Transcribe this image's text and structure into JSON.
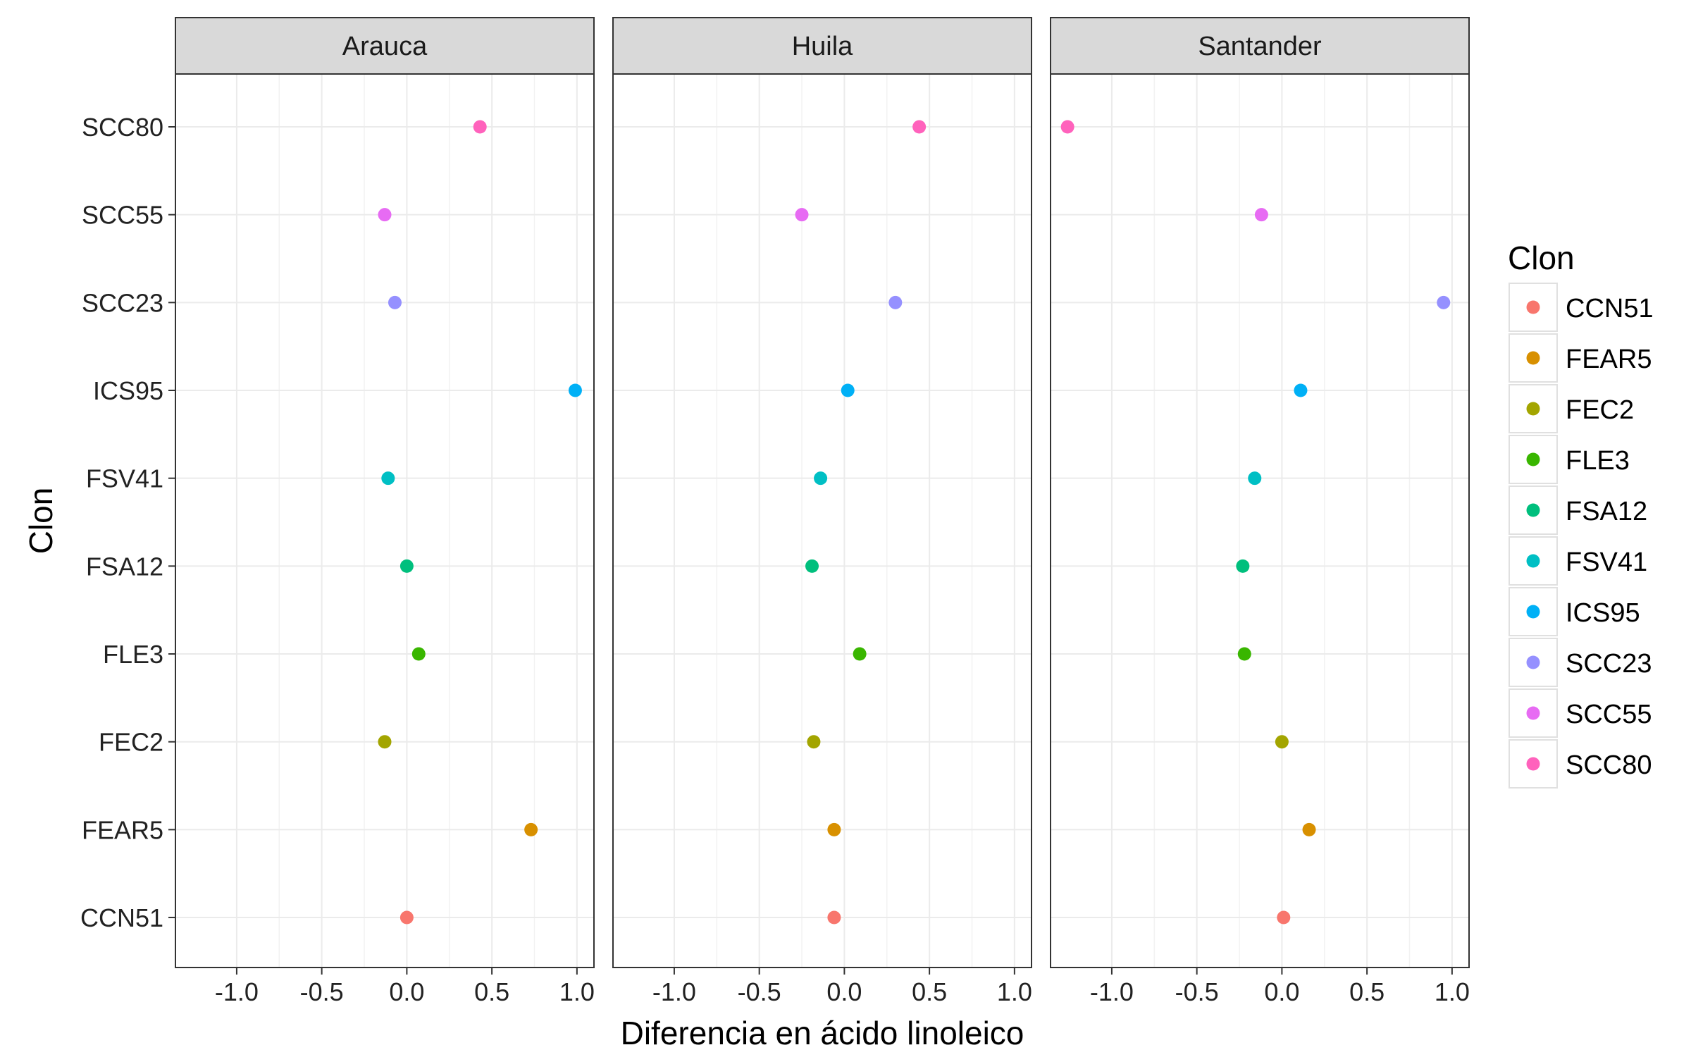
{
  "chart_data": {
    "type": "scatter",
    "facet_by": "Región",
    "panels": [
      {
        "name": "Arauca",
        "points": [
          {
            "clon": "CCN51",
            "x": 0.0
          },
          {
            "clon": "FEAR5",
            "x": 0.73
          },
          {
            "clon": "FEC2",
            "x": -0.13
          },
          {
            "clon": "FLE3",
            "x": 0.07
          },
          {
            "clon": "FSA12",
            "x": 0.0
          },
          {
            "clon": "FSV41",
            "x": -0.11
          },
          {
            "clon": "ICS95",
            "x": 0.99
          },
          {
            "clon": "SCC23",
            "x": -0.07
          },
          {
            "clon": "SCC55",
            "x": -0.13
          },
          {
            "clon": "SCC80",
            "x": 0.43
          }
        ]
      },
      {
        "name": "Huila",
        "points": [
          {
            "clon": "CCN51",
            "x": -0.06
          },
          {
            "clon": "FEAR5",
            "x": -0.06
          },
          {
            "clon": "FEC2",
            "x": -0.18
          },
          {
            "clon": "FLE3",
            "x": 0.09
          },
          {
            "clon": "FSA12",
            "x": -0.19
          },
          {
            "clon": "FSV41",
            "x": -0.14
          },
          {
            "clon": "ICS95",
            "x": 0.02
          },
          {
            "clon": "SCC23",
            "x": 0.3
          },
          {
            "clon": "SCC55",
            "x": -0.25
          },
          {
            "clon": "SCC80",
            "x": 0.44
          }
        ]
      },
      {
        "name": "Santander",
        "points": [
          {
            "clon": "CCN51",
            "x": 0.01
          },
          {
            "clon": "FEAR5",
            "x": 0.16
          },
          {
            "clon": "FEC2",
            "x": 0.0
          },
          {
            "clon": "FLE3",
            "x": -0.22
          },
          {
            "clon": "FSA12",
            "x": -0.23
          },
          {
            "clon": "FSV41",
            "x": -0.16
          },
          {
            "clon": "ICS95",
            "x": 0.11
          },
          {
            "clon": "SCC23",
            "x": 0.95
          },
          {
            "clon": "SCC55",
            "x": -0.12
          },
          {
            "clon": "SCC80",
            "x": -1.26
          }
        ]
      }
    ],
    "categories": [
      "CCN51",
      "FEAR5",
      "FEC2",
      "FLE3",
      "FSA12",
      "FSV41",
      "ICS95",
      "SCC23",
      "SCC55",
      "SCC80"
    ],
    "xlim": [
      -1.36,
      1.1
    ],
    "xticks": [
      -1.0,
      -0.5,
      0.0,
      0.5,
      1.0
    ],
    "xtick_labels": [
      "-1.0",
      "-0.5",
      "0.0",
      "0.5",
      "1.0"
    ],
    "xlabel": "Diferencia en ácido linoleico",
    "ylabel": "Clon",
    "grid": true,
    "legend": {
      "title": "Clon",
      "placement": "right",
      "entries": [
        {
          "label": "CCN51",
          "color": "#F8766D"
        },
        {
          "label": "FEAR5",
          "color": "#D89000"
        },
        {
          "label": "FEC2",
          "color": "#A3A500"
        },
        {
          "label": "FLE3",
          "color": "#39B600"
        },
        {
          "label": "FSA12",
          "color": "#00BF7D"
        },
        {
          "label": "FSV41",
          "color": "#00BFC4"
        },
        {
          "label": "ICS95",
          "color": "#00B0F6"
        },
        {
          "label": "SCC23",
          "color": "#9590FF"
        },
        {
          "label": "SCC55",
          "color": "#E76BF3"
        },
        {
          "label": "SCC80",
          "color": "#FF62BC"
        }
      ]
    }
  }
}
